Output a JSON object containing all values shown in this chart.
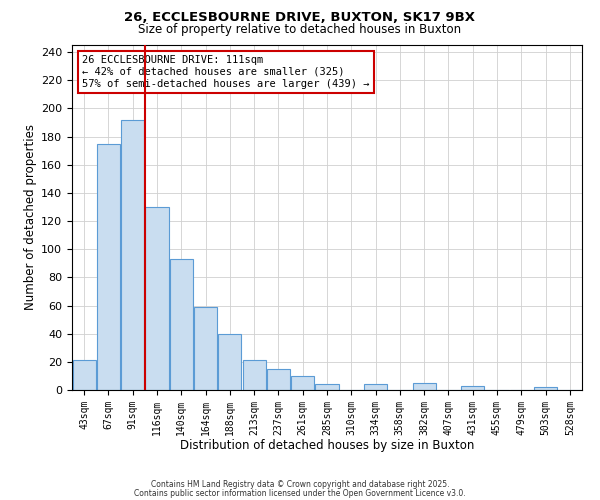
{
  "title1": "26, ECCLESBOURNE DRIVE, BUXTON, SK17 9BX",
  "title2": "Size of property relative to detached houses in Buxton",
  "xlabel": "Distribution of detached houses by size in Buxton",
  "ylabel": "Number of detached properties",
  "bar_labels": [
    "43sqm",
    "67sqm",
    "91sqm",
    "116sqm",
    "140sqm",
    "164sqm",
    "188sqm",
    "213sqm",
    "237sqm",
    "261sqm",
    "285sqm",
    "310sqm",
    "334sqm",
    "358sqm",
    "382sqm",
    "407sqm",
    "431sqm",
    "455sqm",
    "479sqm",
    "503sqm",
    "528sqm"
  ],
  "bar_values": [
    21,
    175,
    192,
    130,
    93,
    59,
    40,
    21,
    15,
    10,
    4,
    0,
    4,
    0,
    5,
    0,
    3,
    0,
    0,
    2,
    0
  ],
  "bar_color": "#c9ddf0",
  "bar_edge_color": "#5b9bd5",
  "property_line_color": "#cc0000",
  "annotation_line1": "26 ECCLESBOURNE DRIVE: 111sqm",
  "annotation_line2": "← 42% of detached houses are smaller (325)",
  "annotation_line3": "57% of semi-detached houses are larger (439) →",
  "grid_color": "#d0d0d0",
  "background_color": "#ffffff",
  "fig_bg_color": "#ffffff",
  "ylim_max": 245,
  "yticks": [
    0,
    20,
    40,
    60,
    80,
    100,
    120,
    140,
    160,
    180,
    200,
    220,
    240
  ],
  "footer1": "Contains HM Land Registry data © Crown copyright and database right 2025.",
  "footer2": "Contains public sector information licensed under the Open Government Licence v3.0."
}
